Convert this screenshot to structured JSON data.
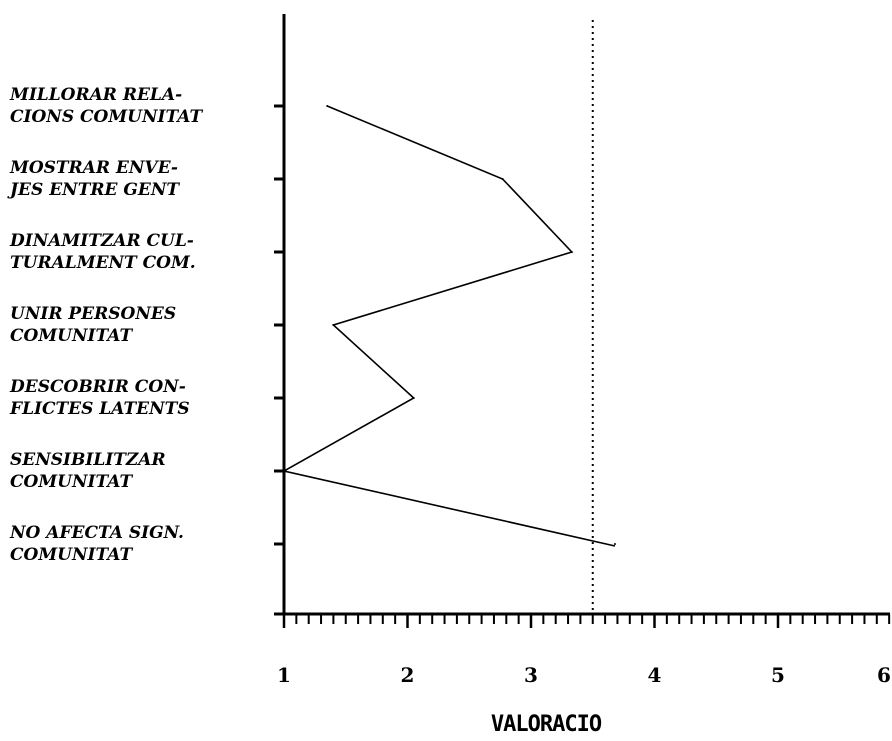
{
  "chart_data": {
    "type": "line",
    "orientation": "horizontal",
    "categories": [
      [
        "MILLORAR RELA-",
        "CIONS COMUNITAT"
      ],
      [
        "MOSTRAR ENVE-",
        "JES ENTRE GENT"
      ],
      [
        "DINAMITZAR CUL-",
        "TURALMENT COM."
      ],
      [
        "UNIR PERSONES",
        "COMUNITAT"
      ],
      [
        "DESCOBRIR CON-",
        "FLICTES LATENTS"
      ],
      [
        "SENSIBILITZAR",
        "COMUNITAT"
      ],
      [
        "NO AFECTA SIGN.",
        "COMUNITAT"
      ]
    ],
    "series": [
      {
        "values": [
          1.35,
          2.77,
          3.33,
          1.4,
          2.05,
          1.0,
          3.68
        ]
      }
    ],
    "reference_line": {
      "value": 3.5,
      "style": "dotted"
    },
    "xlim": [
      1,
      6
    ],
    "x_ticks": [
      "1",
      "2",
      "3",
      "4",
      "5",
      "6"
    ],
    "xlabel": "VALORACIO",
    "ylabel": "",
    "title": "",
    "grid": false
  }
}
